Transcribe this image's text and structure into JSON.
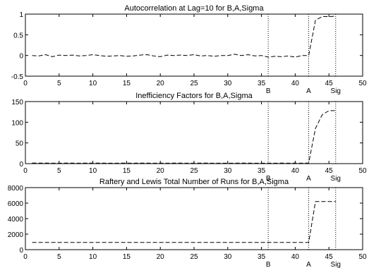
{
  "chart_data": [
    {
      "type": "line",
      "title": "Autocorrelation at Lag=10 for B,A,Sigma",
      "xlim": [
        0,
        50
      ],
      "ylim": [
        -0.5,
        1
      ],
      "xticks": [
        0,
        5,
        10,
        15,
        20,
        25,
        30,
        35,
        40,
        45,
        50
      ],
      "yticks": [
        -0.5,
        0,
        0.5,
        1
      ],
      "ytick_labels": [
        "-0.5",
        "0",
        "0.5",
        "1"
      ],
      "line_style": "dashed",
      "x": [
        1,
        2,
        3,
        4,
        5,
        6,
        7,
        8,
        9,
        10,
        11,
        12,
        13,
        14,
        15,
        16,
        17,
        18,
        19,
        20,
        21,
        22,
        23,
        24,
        25,
        26,
        27,
        28,
        29,
        30,
        31,
        32,
        33,
        34,
        35,
        36,
        37,
        38,
        39,
        40,
        41,
        42,
        43,
        44,
        45,
        46
      ],
      "values": [
        0,
        -0.01,
        0.02,
        -0.03,
        0.01,
        0,
        0.01,
        -0.01,
        0,
        0.02,
        0,
        -0.02,
        -0.01,
        0,
        -0.02,
        -0.01,
        0.01,
        0.02,
        -0.01,
        -0.03,
        0.01,
        0,
        0.01,
        0,
        0.02,
        -0.01,
        0,
        -0.02,
        0,
        0,
        0.03,
        0,
        0.02,
        -0.01,
        0,
        -0.04,
        -0.02,
        -0.03,
        -0.01,
        -0.04,
        0,
        0,
        0.85,
        0.94,
        0.94,
        0.95
      ],
      "vlines": [
        {
          "x": 36,
          "label": "B"
        },
        {
          "x": 42,
          "label": "A"
        },
        {
          "x": 46,
          "label": "Sig"
        }
      ]
    },
    {
      "type": "line",
      "title": "Inefficiency Factors for B,A,Sigma",
      "xlim": [
        0,
        50
      ],
      "ylim": [
        0,
        150
      ],
      "xticks": [
        0,
        5,
        10,
        15,
        20,
        25,
        30,
        35,
        40,
        45,
        50
      ],
      "yticks": [
        0,
        50,
        100,
        150
      ],
      "ytick_labels": [
        "0",
        "50",
        "100",
        "150"
      ],
      "line_style": "dashed",
      "x": [
        1,
        2,
        3,
        4,
        5,
        6,
        7,
        8,
        9,
        10,
        11,
        12,
        13,
        14,
        15,
        16,
        17,
        18,
        19,
        20,
        21,
        22,
        23,
        24,
        25,
        26,
        27,
        28,
        29,
        30,
        31,
        32,
        33,
        34,
        35,
        36,
        37,
        38,
        39,
        40,
        41,
        42,
        43,
        44,
        45,
        46
      ],
      "values": [
        1.5,
        1.2,
        1.4,
        1.0,
        1.1,
        1.3,
        1.2,
        1.0,
        1.4,
        1.2,
        1.3,
        1.1,
        1.0,
        1.2,
        1.3,
        1.1,
        1.4,
        1.2,
        1.0,
        1.2,
        1.1,
        1.3,
        1.2,
        1.0,
        1.1,
        1.4,
        1.2,
        1.1,
        1.0,
        1.2,
        1.1,
        1.3,
        1.2,
        1.0,
        1.1,
        1.2,
        1.0,
        1.3,
        1.1,
        1.2,
        1.0,
        1.5,
        85,
        118,
        128,
        128
      ],
      "vlines": [
        {
          "x": 36,
          "label": "B"
        },
        {
          "x": 42,
          "label": "A"
        },
        {
          "x": 46,
          "label": "Sig"
        }
      ]
    },
    {
      "type": "line",
      "title": "Raftery and Lewis Total Number of Runs for B,A,Sigma",
      "xlim": [
        0,
        50
      ],
      "ylim": [
        0,
        8000
      ],
      "xticks": [
        0,
        5,
        10,
        15,
        20,
        25,
        30,
        35,
        40,
        45,
        50
      ],
      "yticks": [
        0,
        2000,
        4000,
        6000,
        8000
      ],
      "ytick_labels": [
        "0",
        "2000",
        "4000",
        "6000",
        "8000"
      ],
      "line_style": "dashed",
      "x": [
        1,
        2,
        3,
        4,
        5,
        6,
        7,
        8,
        9,
        10,
        11,
        12,
        13,
        14,
        15,
        16,
        17,
        18,
        19,
        20,
        21,
        22,
        23,
        24,
        25,
        26,
        27,
        28,
        29,
        30,
        31,
        32,
        33,
        34,
        35,
        36,
        37,
        38,
        39,
        40,
        41,
        42,
        43,
        44,
        45,
        46
      ],
      "values": [
        937,
        937,
        937,
        937,
        937,
        937,
        937,
        937,
        937,
        937,
        937,
        937,
        937,
        937,
        937,
        937,
        937,
        937,
        937,
        937,
        937,
        937,
        937,
        937,
        937,
        937,
        937,
        937,
        937,
        937,
        937,
        937,
        937,
        937,
        937,
        937,
        937,
        937,
        937,
        937,
        937,
        937,
        6200,
        6200,
        6200,
        6200
      ],
      "vlines": [
        {
          "x": 36,
          "label": "B"
        },
        {
          "x": 42,
          "label": "A"
        },
        {
          "x": 46,
          "label": "Sig"
        }
      ]
    }
  ]
}
